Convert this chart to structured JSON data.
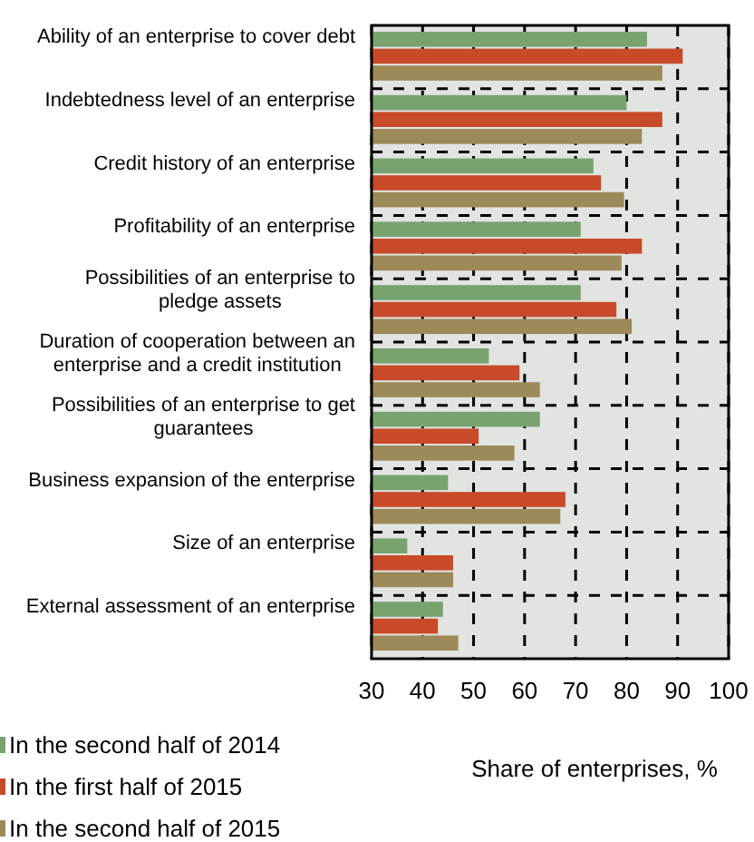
{
  "chart_data": {
    "type": "bar",
    "orientation": "horizontal",
    "xlabel": "Share of enterprises, %",
    "categories": [
      "Ability of an enterprise to cover debt",
      "Indebtedness level of an enterprise",
      "Credit history of an enterprise",
      "Profitability of an enterprise",
      "Possibilities of an enterprise to pledge assets",
      "Duration of cooperation between an enterprise and a credit institution",
      "Possibilities of an enterprise to get guarantees",
      "Business expansion of the enterprise",
      "Size of an enterprise",
      "External assessment of an enterprise"
    ],
    "series": [
      {
        "name": "In the second half of 2014",
        "color": "#78a36f",
        "values": [
          84,
          80,
          73.5,
          71,
          71,
          53,
          63,
          45,
          37,
          44
        ]
      },
      {
        "name": "In the first half of 2015",
        "color": "#c94a28",
        "values": [
          91,
          87,
          75,
          83,
          78,
          59,
          51,
          68,
          46,
          43
        ]
      },
      {
        "name": "In the second half of 2015",
        "color": "#9c8a58",
        "values": [
          87,
          83,
          79.5,
          79,
          81,
          63,
          58,
          67,
          46,
          47
        ]
      }
    ],
    "xlim": [
      30,
      100
    ],
    "xticks": [
      30,
      40,
      50,
      60,
      70,
      80,
      90,
      100
    ],
    "grid": true,
    "legend": "bottom left"
  }
}
